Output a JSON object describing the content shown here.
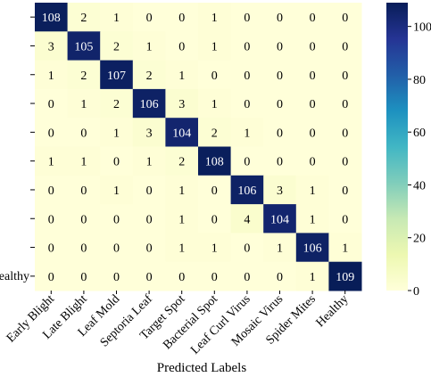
{
  "chart_data": {
    "type": "heatmap",
    "xlabel": "Predicted Labels",
    "ylabel": "",
    "x_categories": [
      "Early Blight",
      "Late Blight",
      "Leaf Mold",
      "Septoria Leaf",
      "Target Spot",
      "Bacterial Spot",
      "Leaf Curl Virus",
      "Mosaic Virus",
      "Spider Mites",
      "Healthy"
    ],
    "visible_y_tick_labels": [
      "ealthy"
    ],
    "matrix": [
      [
        108,
        2,
        1,
        0,
        0,
        1,
        0,
        0,
        0,
        0
      ],
      [
        3,
        105,
        2,
        1,
        0,
        1,
        0,
        0,
        0,
        0
      ],
      [
        1,
        2,
        107,
        2,
        1,
        0,
        0,
        0,
        0,
        0
      ],
      [
        0,
        1,
        2,
        106,
        3,
        1,
        0,
        0,
        0,
        0
      ],
      [
        0,
        0,
        1,
        3,
        104,
        2,
        1,
        0,
        0,
        0
      ],
      [
        1,
        1,
        0,
        1,
        2,
        108,
        0,
        0,
        0,
        0
      ],
      [
        0,
        0,
        1,
        0,
        1,
        0,
        106,
        3,
        1,
        0
      ],
      [
        0,
        0,
        0,
        0,
        1,
        0,
        4,
        104,
        1,
        0
      ],
      [
        0,
        0,
        0,
        0,
        1,
        1,
        0,
        1,
        106,
        1
      ],
      [
        0,
        0,
        0,
        0,
        0,
        0,
        0,
        0,
        1,
        109
      ]
    ],
    "colorbar": {
      "colormap": "YlGnBu",
      "min": 0,
      "max": 109,
      "ticks": [
        0,
        20,
        40,
        60,
        80,
        100
      ],
      "tick_labels": [
        "0",
        "20",
        "40",
        "60",
        "80",
        "100"
      ]
    },
    "colors": {
      "low": "#ffffd9",
      "high": "#081d58",
      "text_dark": "#000000",
      "text_light": "#ffffff"
    }
  }
}
